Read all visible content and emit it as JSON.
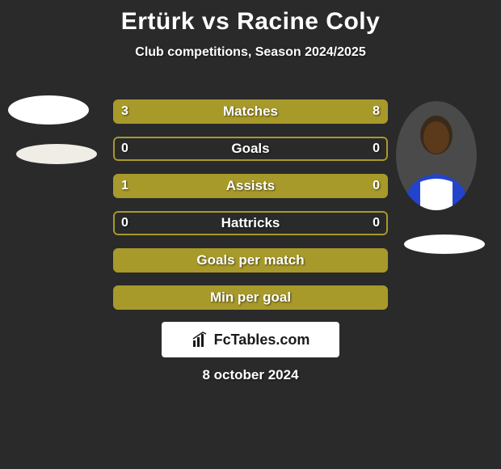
{
  "title": "Ertürk vs Racine Coly",
  "subtitle": "Club competitions, Season 2024/2025",
  "date": "8 october 2024",
  "brand": "FcTables.com",
  "colors": {
    "accent": "#a89a2a",
    "accent_border": "#a89a2a",
    "empty_bg": "transparent",
    "background": "#2a2a2a"
  },
  "bars": [
    {
      "label": "Matches",
      "left": "3",
      "right": "8",
      "left_pct": 27,
      "right_pct": 73
    },
    {
      "label": "Goals",
      "left": "0",
      "right": "0",
      "left_pct": 0,
      "right_pct": 0
    },
    {
      "label": "Assists",
      "left": "1",
      "right": "0",
      "left_pct": 100,
      "right_pct": 0
    },
    {
      "label": "Hattricks",
      "left": "0",
      "right": "0",
      "left_pct": 0,
      "right_pct": 0
    },
    {
      "label": "Goals per match",
      "left": "",
      "right": "",
      "left_pct": 100,
      "right_pct": 0,
      "full": true
    },
    {
      "label": "Min per goal",
      "left": "",
      "right": "",
      "left_pct": 100,
      "right_pct": 0,
      "full": true
    }
  ]
}
